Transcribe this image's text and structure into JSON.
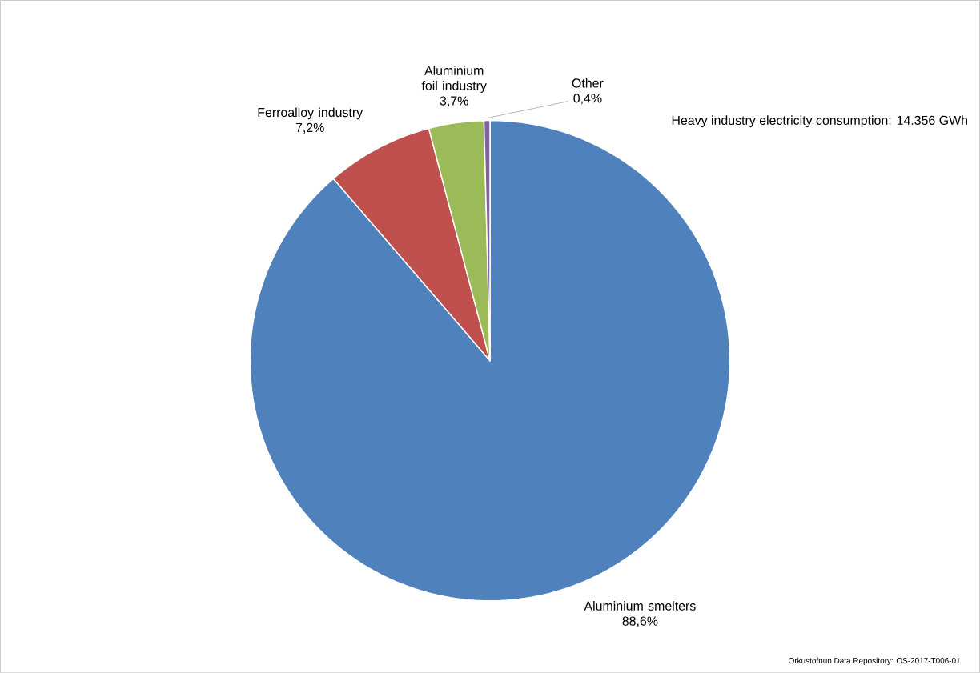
{
  "chart_data": {
    "type": "pie",
    "title": "Heavy industry electricity consumption: 14.356 GWh",
    "categories": [
      "Aluminium smelters",
      "Ferroalloy industry",
      "Aluminium foil industry",
      "Other"
    ],
    "values": [
      88.6,
      7.2,
      3.7,
      0.4
    ],
    "colors": [
      "#4f81bd",
      "#c0504d",
      "#9bbb59",
      "#8064a2"
    ],
    "value_labels": [
      "88,6%",
      "7,2%",
      "3,7%",
      "0,4%"
    ],
    "annotations": [
      "Orkustofnun Data Repository: OS-2017-T006-01"
    ]
  }
}
